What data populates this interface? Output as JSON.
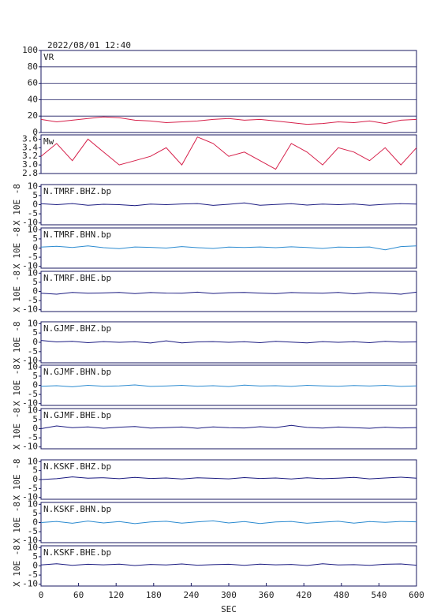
{
  "header": {
    "title": "2022/08/01 12:40"
  },
  "chart_data": [
    {
      "type": "line",
      "label": "VR",
      "color": "#d6204a",
      "grid": true,
      "xlim": [
        0,
        600
      ],
      "ylim": [
        0,
        100
      ],
      "yticks": [
        0,
        20,
        40,
        60,
        80,
        100
      ],
      "x": [
        0,
        25,
        50,
        75,
        100,
        125,
        150,
        175,
        200,
        225,
        250,
        275,
        300,
        325,
        350,
        375,
        400,
        425,
        450,
        475,
        500,
        525,
        550,
        575,
        600
      ],
      "values": [
        16,
        13,
        15,
        17,
        19,
        18,
        15,
        14,
        12,
        13,
        14,
        16,
        17,
        15,
        16,
        14,
        12,
        10,
        11,
        13,
        12,
        14,
        11,
        15,
        16
      ]
    },
    {
      "type": "line",
      "label": "Mw",
      "color": "#d6204a",
      "grid": false,
      "xlim": [
        0,
        600
      ],
      "ylim": [
        2.8,
        3.7
      ],
      "yticks": [
        2.8,
        {
          "value": 3,
          "label": "3.0"
        },
        3.2,
        3.4,
        3.6
      ],
      "x": [
        0,
        25,
        50,
        75,
        100,
        125,
        150,
        175,
        200,
        225,
        250,
        275,
        300,
        325,
        350,
        375,
        400,
        425,
        450,
        475,
        500,
        525,
        550,
        575,
        600
      ],
      "values": [
        3.2,
        3.5,
        3.1,
        3.6,
        3.3,
        3.0,
        3.1,
        3.2,
        3.4,
        3.0,
        3.65,
        3.5,
        3.2,
        3.3,
        3.1,
        2.9,
        3.5,
        3.3,
        3.0,
        3.4,
        3.3,
        3.1,
        3.4,
        3.0,
        3.4
      ]
    },
    {
      "type": "line",
      "label": "N.TMRF.BHZ.bp",
      "ylabel": "X 10E -8",
      "color": "#1a1a80",
      "grid": false,
      "xlim": [
        0,
        600
      ],
      "ylim": [
        -11,
        11
      ],
      "yticks": [
        -10,
        -5,
        0,
        5,
        10
      ],
      "x": [
        0,
        25,
        50,
        75,
        100,
        125,
        150,
        175,
        200,
        225,
        250,
        275,
        300,
        325,
        350,
        375,
        400,
        425,
        450,
        475,
        500,
        525,
        550,
        575,
        600
      ],
      "values": [
        0.5,
        0,
        0.6,
        -0.3,
        0.2,
        0,
        -0.5,
        0.3,
        0,
        0.4,
        0.6,
        -0.4,
        0.2,
        1,
        -0.3,
        0.1,
        0.5,
        -0.2,
        0.3,
        0,
        0.4,
        -0.3,
        0.2,
        0.5,
        0.3
      ]
    },
    {
      "type": "line",
      "label": "N.TMRF.BHN.bp",
      "ylabel": "X 10E -8",
      "color": "#2a8ad0",
      "grid": false,
      "xlim": [
        0,
        600
      ],
      "ylim": [
        -11,
        11
      ],
      "yticks": [
        -10,
        -5,
        0,
        5,
        10
      ],
      "x": [
        0,
        25,
        50,
        75,
        100,
        125,
        150,
        175,
        200,
        225,
        250,
        275,
        300,
        325,
        350,
        375,
        400,
        425,
        450,
        475,
        500,
        525,
        550,
        575,
        600
      ],
      "values": [
        0.5,
        1,
        0.3,
        1.2,
        0.2,
        -0.3,
        0.6,
        0.4,
        0,
        0.8,
        0.2,
        -0.2,
        0.5,
        0.3,
        0.6,
        0.2,
        0.7,
        0.3,
        -0.2,
        0.5,
        0.4,
        0.6,
        -1,
        0.8,
        1.2
      ]
    },
    {
      "type": "line",
      "label": "N.TMRF.BHE.bp",
      "ylabel": "X 10E -8",
      "color": "#1a1a80",
      "grid": false,
      "xlim": [
        0,
        600
      ],
      "ylim": [
        -11,
        11
      ],
      "yticks": [
        -10,
        -5,
        0,
        5,
        10
      ],
      "x": [
        0,
        25,
        50,
        75,
        100,
        125,
        150,
        175,
        200,
        225,
        250,
        275,
        300,
        325,
        350,
        375,
        400,
        425,
        450,
        475,
        500,
        525,
        550,
        575,
        600
      ],
      "values": [
        -1,
        -1.5,
        -0.5,
        -1,
        -0.8,
        -0.5,
        -1.2,
        -0.6,
        -0.9,
        -1,
        -0.4,
        -1.1,
        -0.7,
        -0.5,
        -0.9,
        -1.2,
        -0.6,
        -0.8,
        -1,
        -0.5,
        -1.3,
        -0.6,
        -0.9,
        -1.5,
        -0.4
      ]
    },
    {
      "type": "line",
      "label": "N.GJMF.BHZ.bp",
      "ylabel": "X 10E -8",
      "color": "#1a1a80",
      "grid": false,
      "xlim": [
        0,
        600
      ],
      "ylim": [
        -11,
        11
      ],
      "yticks": [
        -10,
        -5,
        0,
        5,
        10
      ],
      "x": [
        0,
        25,
        50,
        75,
        100,
        125,
        150,
        175,
        200,
        225,
        250,
        275,
        300,
        325,
        350,
        375,
        400,
        425,
        450,
        475,
        500,
        525,
        550,
        575,
        600
      ],
      "values": [
        1,
        0.2,
        0.5,
        -0.2,
        0.4,
        0,
        0.3,
        -0.4,
        0.8,
        -0.3,
        0.2,
        0.4,
        0,
        0.3,
        -0.2,
        0.5,
        0.1,
        -0.3,
        0.4,
        0,
        0.3,
        -0.2,
        0.5,
        0.1,
        0.2
      ]
    },
    {
      "type": "line",
      "label": "N.GJMF.BHN.bp",
      "ylabel": "X 10E -8",
      "color": "#2a8ad0",
      "grid": false,
      "xlim": [
        0,
        600
      ],
      "ylim": [
        -11,
        11
      ],
      "yticks": [
        -10,
        -5,
        0,
        5,
        10
      ],
      "x": [
        0,
        25,
        50,
        75,
        100,
        125,
        150,
        175,
        200,
        225,
        250,
        275,
        300,
        325,
        350,
        375,
        400,
        425,
        450,
        475,
        500,
        525,
        550,
        575,
        600
      ],
      "values": [
        -0.5,
        -0.2,
        -0.8,
        0,
        -0.5,
        -0.3,
        0.2,
        -0.6,
        -0.4,
        0,
        -0.5,
        -0.2,
        -0.7,
        0.1,
        -0.4,
        -0.2,
        -0.6,
        0,
        -0.3,
        -0.5,
        -0.1,
        -0.4,
        0,
        -0.6,
        -0.3
      ]
    },
    {
      "type": "line",
      "label": "N.GJMF.BHE.bp",
      "ylabel": "X 10E -8",
      "color": "#1a1a80",
      "grid": false,
      "xlim": [
        0,
        600
      ],
      "ylim": [
        -11,
        11
      ],
      "yticks": [
        -10,
        -5,
        0,
        5,
        10
      ],
      "x": [
        0,
        25,
        50,
        75,
        100,
        125,
        150,
        175,
        200,
        225,
        250,
        275,
        300,
        325,
        350,
        375,
        400,
        425,
        450,
        475,
        500,
        525,
        550,
        575,
        600
      ],
      "values": [
        0,
        1.5,
        0.5,
        1,
        0.2,
        0.8,
        1.2,
        0.3,
        0.6,
        0.9,
        0.2,
        1,
        0.5,
        0.4,
        1.1,
        0.6,
        1.8,
        0.7,
        0.3,
        0.9,
        0.5,
        0.2,
        0.8,
        0.4,
        0.6
      ]
    },
    {
      "type": "line",
      "label": "N.KSKF.BHZ.bp",
      "ylabel": "X 10E -8",
      "color": "#1a1a80",
      "grid": false,
      "xlim": [
        0,
        600
      ],
      "ylim": [
        -11,
        11
      ],
      "yticks": [
        -10,
        -5,
        0,
        5,
        10
      ],
      "x": [
        0,
        25,
        50,
        75,
        100,
        125,
        150,
        175,
        200,
        225,
        250,
        275,
        300,
        325,
        350,
        375,
        400,
        425,
        450,
        475,
        500,
        525,
        550,
        575,
        600
      ],
      "values": [
        0,
        0.5,
        1.5,
        0.8,
        1,
        0.5,
        1.2,
        0.6,
        0.9,
        0.3,
        1,
        0.7,
        0.4,
        1.1,
        0.6,
        0.9,
        0.3,
        1,
        0.5,
        0.8,
        1.2,
        0.4,
        0.9,
        1.3,
        0.8
      ]
    },
    {
      "type": "line",
      "label": "N.KSKF.BHN.bp",
      "ylabel": "X 10E -8",
      "color": "#2a8ad0",
      "grid": false,
      "xlim": [
        0,
        600
      ],
      "ylim": [
        -11,
        11
      ],
      "yticks": [
        -10,
        -5,
        0,
        5,
        10
      ],
      "x": [
        0,
        25,
        50,
        75,
        100,
        125,
        150,
        175,
        200,
        225,
        250,
        275,
        300,
        325,
        350,
        375,
        400,
        425,
        450,
        475,
        500,
        525,
        550,
        575,
        600
      ],
      "values": [
        0,
        0.6,
        -0.4,
        0.8,
        -0.2,
        0.5,
        -0.6,
        0.3,
        0.7,
        -0.3,
        0.4,
        0.9,
        -0.2,
        0.5,
        -0.5,
        0.3,
        0.6,
        -0.4,
        0.2,
        0.7,
        -0.3,
        0.5,
        0.1,
        0.6,
        0.4
      ]
    },
    {
      "type": "line",
      "label": "N.KSKF.BHE.bp",
      "ylabel": "X 10E -8",
      "color": "#1a1a80",
      "grid": false,
      "xlim": [
        0,
        600
      ],
      "ylim": [
        -11,
        11
      ],
      "yticks": [
        -10,
        -5,
        0,
        5,
        10
      ],
      "x": [
        0,
        25,
        50,
        75,
        100,
        125,
        150,
        175,
        200,
        225,
        250,
        275,
        300,
        325,
        350,
        375,
        400,
        425,
        450,
        475,
        500,
        525,
        550,
        575,
        600
      ],
      "xticks": [
        0,
        60,
        120,
        180,
        240,
        300,
        360,
        420,
        480,
        540,
        600
      ],
      "xlabel": "SEC",
      "values": [
        0.5,
        1.2,
        0.3,
        0.9,
        0.6,
        1,
        0.2,
        0.8,
        0.5,
        1.1,
        0.4,
        0.7,
        0.9,
        0.3,
        1,
        0.6,
        0.8,
        0.2,
        1.2,
        0.5,
        0.7,
        0.3,
        0.9,
        1.1,
        0.4
      ]
    }
  ]
}
